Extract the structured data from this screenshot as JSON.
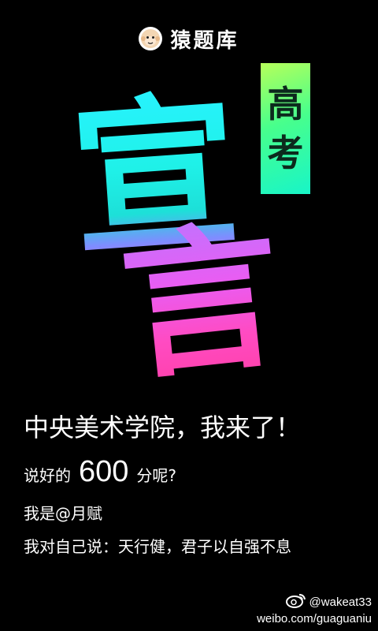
{
  "header": {
    "brand_name": "猿题库",
    "logo_icon": "monkey-face-icon"
  },
  "hero": {
    "badge_chars": [
      "高",
      "考"
    ],
    "calligraphy_chars": [
      "宣",
      "言"
    ],
    "colors": {
      "badge_start": "#b6ff5a",
      "badge_end": "#18f5c8",
      "cyan": "#28f3ff",
      "purple": "#c073ff",
      "pink": "#ff3fa8"
    }
  },
  "content": {
    "headline": "中央美术学院，我来了！",
    "line2_prefix": "说好的",
    "line2_number": "600",
    "line2_suffix": "分呢?",
    "line3": "我是@月赋",
    "line4": "我对自己说：天行健，君子以自强不息"
  },
  "watermark": {
    "icon": "weibo-icon",
    "handle": "@wakeat33",
    "url": "weibo.com/guaguaniu"
  }
}
